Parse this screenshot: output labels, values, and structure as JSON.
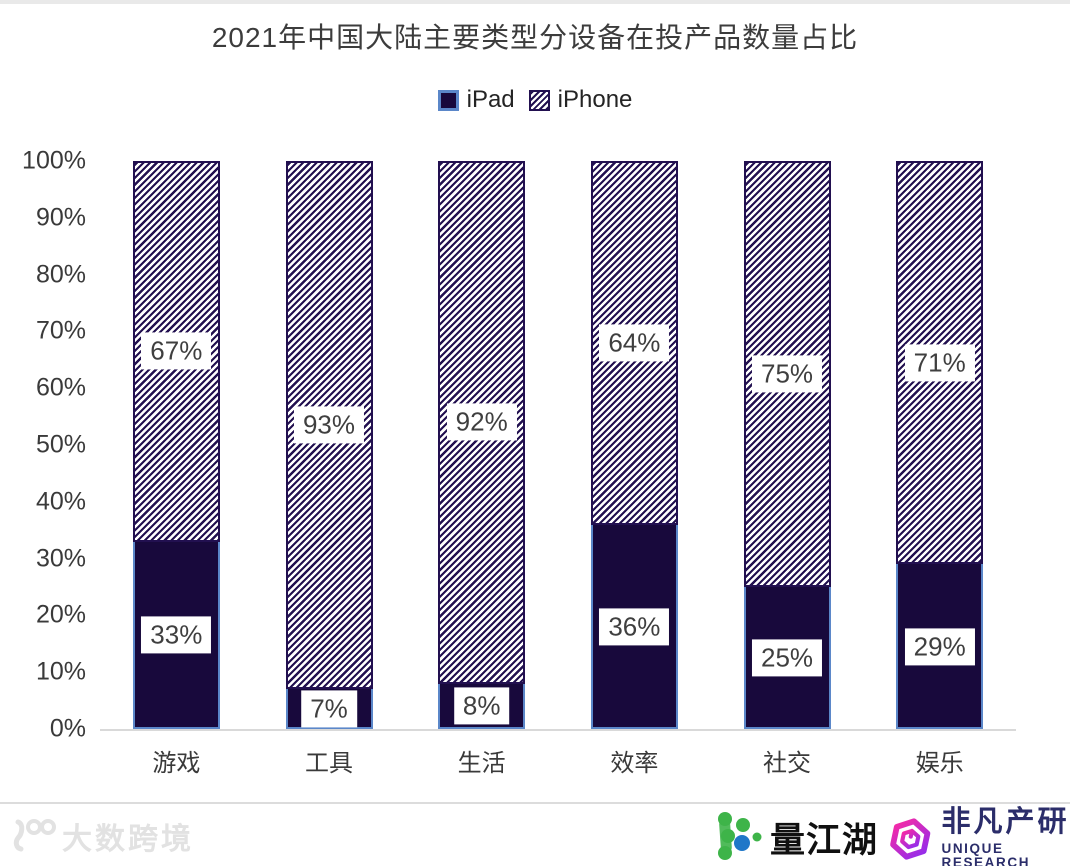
{
  "chart_data": {
    "type": "bar",
    "stacked": true,
    "title": "2021年中国大陆主要类型分设备在投产品数量占比",
    "categories": [
      "游戏",
      "工具",
      "生活",
      "效率",
      "社交",
      "娱乐"
    ],
    "series": [
      {
        "name": "iPad",
        "values": [
          33,
          7,
          8,
          36,
          25,
          29
        ],
        "style": "solid"
      },
      {
        "name": "iPhone",
        "values": [
          67,
          93,
          92,
          64,
          75,
          71
        ],
        "style": "hatch"
      }
    ],
    "y_ticks": [
      "100%",
      "90%",
      "80%",
      "70%",
      "60%",
      "50%",
      "40%",
      "30%",
      "20%",
      "10%",
      "0%"
    ],
    "ylim": [
      0,
      100
    ],
    "value_label_suffix": "%",
    "legend_position": "top",
    "grid": false,
    "colors": {
      "ipad_fill": "#18093c",
      "ipad_border": "#5b87c9",
      "hatch_line": "#221050",
      "axis_line": "#d9d9d9",
      "text": "#3a3a3a"
    }
  },
  "footer": {
    "watermark": "大数跨境",
    "logos": [
      {
        "name": "量江湖",
        "accent_green": "#3eb449",
        "accent_blue": "#2077c8"
      },
      {
        "name": "非凡产研",
        "subtitle": "UNIQUE RESEARCH",
        "accent_pink": "#fb2aa2",
        "accent_purple": "#8d2df0",
        "text_color": "#2b2d6a"
      }
    ]
  }
}
